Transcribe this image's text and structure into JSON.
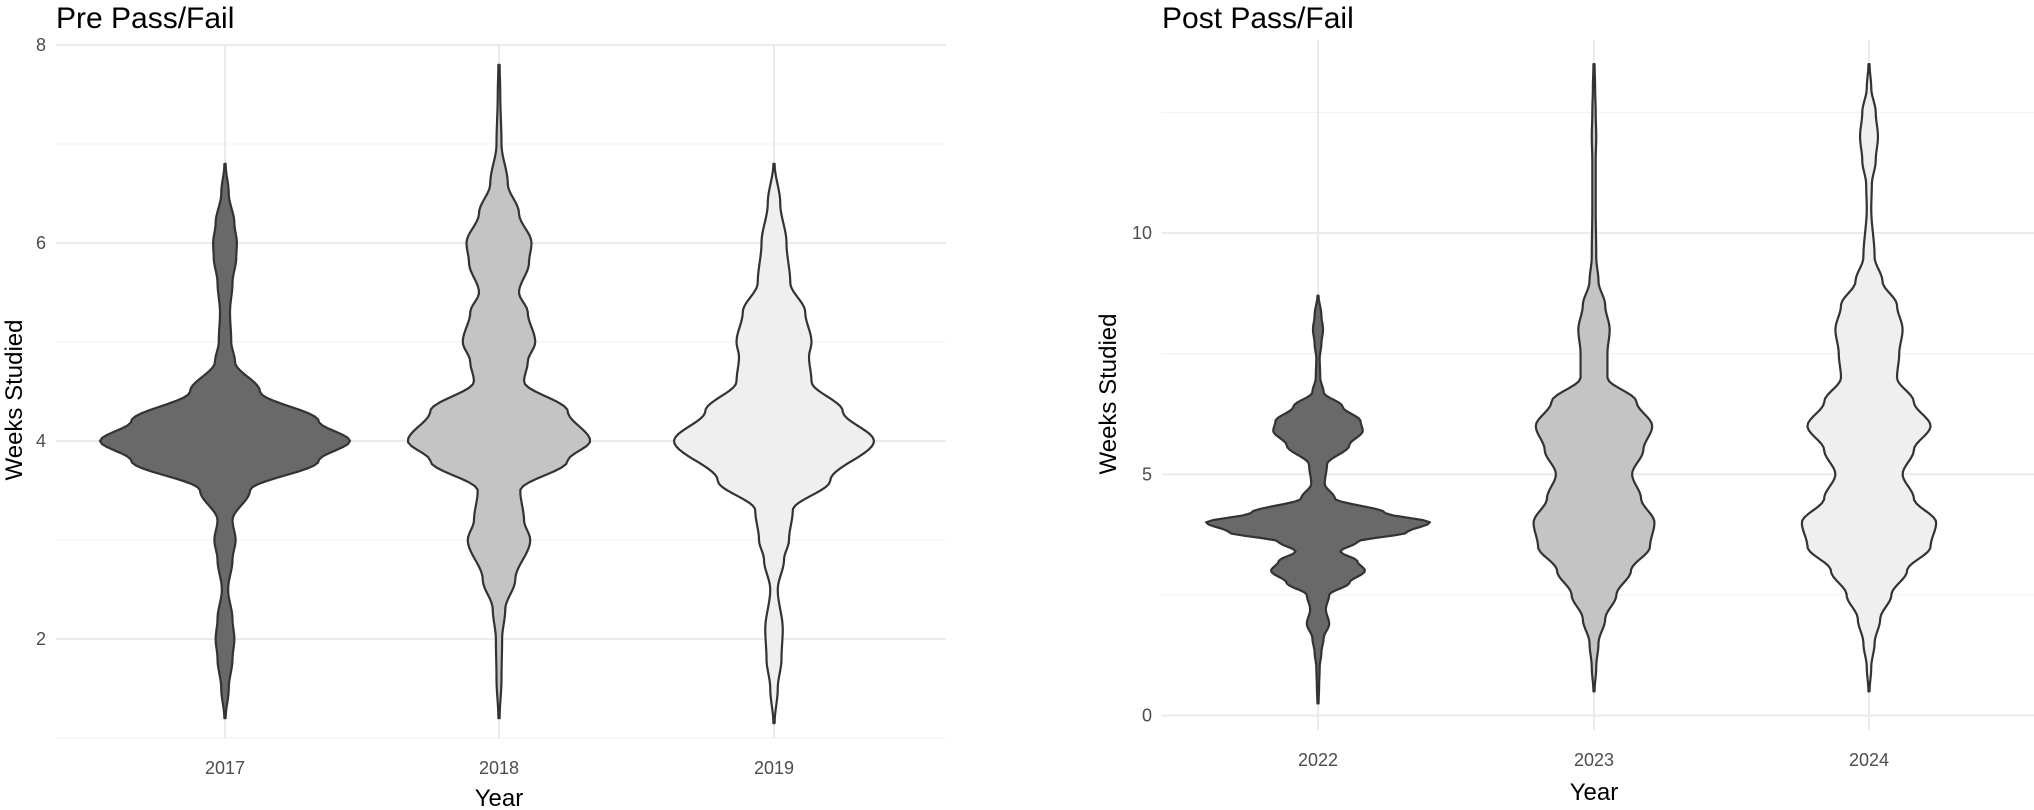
{
  "chart_data": [
    {
      "type": "violin",
      "title": "Pre Pass/Fail",
      "xlabel": "Year",
      "ylabel": "Weeks Studied",
      "categories": [
        "2017",
        "2018",
        "2019"
      ],
      "fills": [
        "#696969",
        "#c4c4c4",
        "#efefef"
      ],
      "ylim": [
        1.0,
        8.0
      ],
      "yticks": [
        2,
        4,
        6,
        8
      ],
      "grid": true,
      "violins": [
        {
          "category": "2017",
          "min": 1.2,
          "max": 6.8,
          "density": [
            [
              1.2,
              0.005
            ],
            [
              1.5,
              0.03
            ],
            [
              1.8,
              0.06
            ],
            [
              2.0,
              0.075
            ],
            [
              2.2,
              0.06
            ],
            [
              2.5,
              0.025
            ],
            [
              2.8,
              0.06
            ],
            [
              3.0,
              0.085
            ],
            [
              3.2,
              0.06
            ],
            [
              3.5,
              0.2
            ],
            [
              3.8,
              0.75
            ],
            [
              4.0,
              1.0
            ],
            [
              4.2,
              0.75
            ],
            [
              4.5,
              0.28
            ],
            [
              4.8,
              0.08
            ],
            [
              5.0,
              0.05
            ],
            [
              5.3,
              0.04
            ],
            [
              5.6,
              0.06
            ],
            [
              5.85,
              0.09
            ],
            [
              6.0,
              0.095
            ],
            [
              6.2,
              0.075
            ],
            [
              6.5,
              0.03
            ],
            [
              6.8,
              0.005
            ]
          ]
        },
        {
          "category": "2018",
          "min": 1.2,
          "max": 7.8,
          "density": [
            [
              1.2,
              0.005
            ],
            [
              1.6,
              0.02
            ],
            [
              2.0,
              0.025
            ],
            [
              2.3,
              0.05
            ],
            [
              2.6,
              0.13
            ],
            [
              3.0,
              0.25
            ],
            [
              3.2,
              0.2
            ],
            [
              3.5,
              0.17
            ],
            [
              3.8,
              0.55
            ],
            [
              4.0,
              0.73
            ],
            [
              4.3,
              0.55
            ],
            [
              4.6,
              0.2
            ],
            [
              4.8,
              0.23
            ],
            [
              5.0,
              0.29
            ],
            [
              5.3,
              0.23
            ],
            [
              5.5,
              0.16
            ],
            [
              5.8,
              0.24
            ],
            [
              6.0,
              0.26
            ],
            [
              6.3,
              0.16
            ],
            [
              6.6,
              0.07
            ],
            [
              7.0,
              0.02
            ],
            [
              7.5,
              0.01
            ],
            [
              7.8,
              0.005
            ]
          ]
        },
        {
          "category": "2019",
          "min": 1.15,
          "max": 6.8,
          "density": [
            [
              1.15,
              0.005
            ],
            [
              1.5,
              0.03
            ],
            [
              1.8,
              0.06
            ],
            [
              2.1,
              0.07
            ],
            [
              2.5,
              0.03
            ],
            [
              2.8,
              0.08
            ],
            [
              3.0,
              0.12
            ],
            [
              3.3,
              0.15
            ],
            [
              3.6,
              0.45
            ],
            [
              4.0,
              0.8
            ],
            [
              4.3,
              0.55
            ],
            [
              4.6,
              0.3
            ],
            [
              4.85,
              0.28
            ],
            [
              5.0,
              0.3
            ],
            [
              5.3,
              0.25
            ],
            [
              5.6,
              0.13
            ],
            [
              6.0,
              0.1
            ],
            [
              6.4,
              0.05
            ],
            [
              6.8,
              0.005
            ]
          ]
        }
      ]
    },
    {
      "type": "violin",
      "title": "Post Pass/Fail",
      "xlabel": "Year",
      "ylabel": "Weeks Studied",
      "categories": [
        "2022",
        "2023",
        "2024"
      ],
      "fills": [
        "#696969",
        "#c4c4c4",
        "#efefef"
      ],
      "ylim": [
        -0.3,
        14.0
      ],
      "yticks": [
        0,
        5,
        10
      ],
      "grid": true,
      "violins": [
        {
          "category": "2022",
          "min": 0.25,
          "max": 8.7,
          "density": [
            [
              0.25,
              0.005
            ],
            [
              0.6,
              0.01
            ],
            [
              1.0,
              0.015
            ],
            [
              1.3,
              0.03
            ],
            [
              1.6,
              0.05
            ],
            [
              1.9,
              0.1
            ],
            [
              2.2,
              0.07
            ],
            [
              2.5,
              0.1
            ],
            [
              2.75,
              0.28
            ],
            [
              3.0,
              0.42
            ],
            [
              3.2,
              0.35
            ],
            [
              3.4,
              0.2
            ],
            [
              3.6,
              0.35
            ],
            [
              3.8,
              0.8
            ],
            [
              4.0,
              1.0
            ],
            [
              4.2,
              0.6
            ],
            [
              4.5,
              0.15
            ],
            [
              4.8,
              0.06
            ],
            [
              5.2,
              0.08
            ],
            [
              5.6,
              0.28
            ],
            [
              5.9,
              0.4
            ],
            [
              6.1,
              0.38
            ],
            [
              6.4,
              0.22
            ],
            [
              6.7,
              0.05
            ],
            [
              7.0,
              0.02
            ],
            [
              7.4,
              0.015
            ],
            [
              7.7,
              0.03
            ],
            [
              8.0,
              0.045
            ],
            [
              8.3,
              0.03
            ],
            [
              8.7,
              0.005
            ]
          ]
        },
        {
          "category": "2023",
          "min": 0.5,
          "max": 13.5,
          "density": [
            [
              0.5,
              0.005
            ],
            [
              1.0,
              0.02
            ],
            [
              1.5,
              0.04
            ],
            [
              2.0,
              0.1
            ],
            [
              2.5,
              0.2
            ],
            [
              3.0,
              0.33
            ],
            [
              3.5,
              0.5
            ],
            [
              4.0,
              0.54
            ],
            [
              4.5,
              0.42
            ],
            [
              5.0,
              0.34
            ],
            [
              5.5,
              0.44
            ],
            [
              6.0,
              0.52
            ],
            [
              6.5,
              0.38
            ],
            [
              7.0,
              0.12
            ],
            [
              7.5,
              0.12
            ],
            [
              8.0,
              0.14
            ],
            [
              8.5,
              0.1
            ],
            [
              9.0,
              0.04
            ],
            [
              9.5,
              0.02
            ],
            [
              10.5,
              0.015
            ],
            [
              11.5,
              0.015
            ],
            [
              12.0,
              0.02
            ],
            [
              12.5,
              0.015
            ],
            [
              13.0,
              0.01
            ],
            [
              13.5,
              0.005
            ]
          ]
        },
        {
          "category": "2024",
          "min": 0.5,
          "max": 13.5,
          "density": [
            [
              0.5,
              0.005
            ],
            [
              1.0,
              0.02
            ],
            [
              1.5,
              0.05
            ],
            [
              2.0,
              0.1
            ],
            [
              2.5,
              0.2
            ],
            [
              3.0,
              0.34
            ],
            [
              3.5,
              0.55
            ],
            [
              4.0,
              0.6
            ],
            [
              4.5,
              0.4
            ],
            [
              5.0,
              0.3
            ],
            [
              5.5,
              0.4
            ],
            [
              6.0,
              0.55
            ],
            [
              6.5,
              0.4
            ],
            [
              7.0,
              0.25
            ],
            [
              7.5,
              0.27
            ],
            [
              8.0,
              0.3
            ],
            [
              8.5,
              0.25
            ],
            [
              9.0,
              0.12
            ],
            [
              9.5,
              0.05
            ],
            [
              10.5,
              0.02
            ],
            [
              11.0,
              0.025
            ],
            [
              11.5,
              0.06
            ],
            [
              12.0,
              0.08
            ],
            [
              12.5,
              0.06
            ],
            [
              13.0,
              0.02
            ],
            [
              13.5,
              0.005
            ]
          ]
        }
      ]
    }
  ]
}
